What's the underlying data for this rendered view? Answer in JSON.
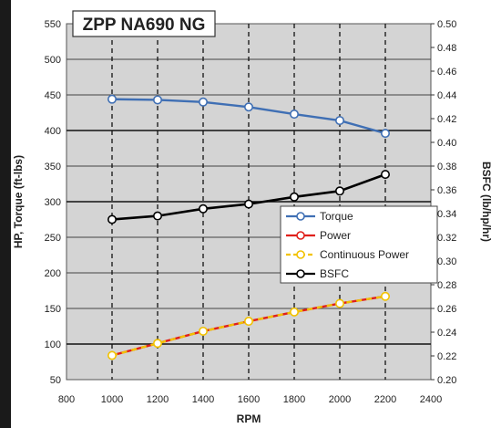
{
  "chart_data": {
    "type": "line",
    "title": "ZPP NA690 NG",
    "xlabel": "RPM",
    "ylabel": "HP, Torque (ft-lbs)",
    "y2label": "BSFC (lb/hp/hr)",
    "xlim": [
      800,
      2400
    ],
    "ylim": [
      50,
      550
    ],
    "y2lim": [
      0.2,
      0.5
    ],
    "x_ticks": [
      "800",
      "1000",
      "1200",
      "1400",
      "1600",
      "1800",
      "2000",
      "2200",
      "2400"
    ],
    "y_ticks": [
      "50",
      "100",
      "150",
      "200",
      "250",
      "300",
      "350",
      "400",
      "450",
      "500",
      "550"
    ],
    "y2_ticks": [
      "0.20",
      "0.22",
      "0.24",
      "0.26",
      "0.28",
      "0.30",
      "0.32",
      "0.34",
      "0.36",
      "0.38",
      "0.40",
      "0.42",
      "0.44",
      "0.46",
      "0.48",
      "0.50"
    ],
    "grid": true,
    "plot_background": "#d4d4d4",
    "legend_position": "right-middle",
    "x": [
      1000,
      1200,
      1400,
      1600,
      1800,
      2000,
      2200
    ],
    "series": [
      {
        "name": "Torque",
        "axis": "left",
        "color": "#3f6fb4",
        "marker_fill": "#ffffff",
        "values": [
          444,
          443,
          440,
          433,
          423,
          414,
          396
        ]
      },
      {
        "name": "Power",
        "axis": "left",
        "color": "#e0201b",
        "marker_fill": "#ffffff",
        "values": [
          84,
          101,
          118,
          132,
          145,
          157,
          167
        ]
      },
      {
        "name": "Continuous Power",
        "axis": "left",
        "color": "#f2c200",
        "marker_fill": "#ffffff",
        "dashed": true,
        "values": [
          84,
          101,
          118,
          132,
          145,
          157,
          167
        ]
      },
      {
        "name": "BSFC",
        "axis": "right",
        "color": "#000000",
        "marker_fill": "#ffffff",
        "values": [
          0.335,
          0.338,
          0.344,
          0.348,
          0.354,
          0.359,
          0.373
        ]
      }
    ]
  }
}
